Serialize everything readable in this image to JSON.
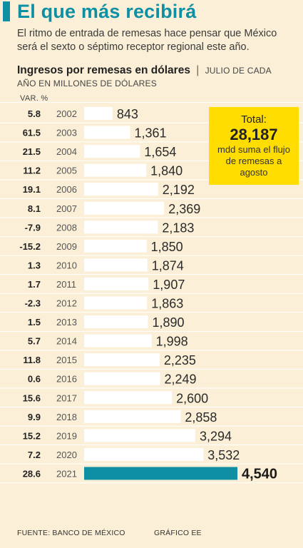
{
  "headline": "El que más recibirá",
  "dek": "El ritmo de entrada de remesas hace pensar que México será el sexto o séptimo receptor regional este año.",
  "chart_title": "Ingresos por remesas en dólares",
  "chart_subtitle_sep": "|",
  "chart_subtitle": "JULIO DE CADA",
  "units": "AÑO EN MILLONES DE DÓLARES",
  "var_header": "VAR. %",
  "total": {
    "label": "Total:",
    "value": "28,187",
    "desc": "mdd suma el flujo de remesas a agosto"
  },
  "footer": {
    "source": "FUENTE: BANCO DE MÉXICO",
    "credit": "GRÁFICO EE"
  },
  "colors": {
    "accent": "#0e8fa3",
    "bar": "#ffffff",
    "highlight_bar": "#0e8fa3",
    "background": "#fbf0d7",
    "total_box": "#ffdd00"
  },
  "chart_data": {
    "type": "bar",
    "orientation": "horizontal",
    "categories": [
      "2002",
      "2003",
      "2004",
      "2005",
      "2006",
      "2007",
      "2008",
      "2009",
      "2010",
      "2011",
      "2012",
      "2013",
      "2014",
      "2015",
      "2016",
      "2017",
      "2018",
      "2019",
      "2020",
      "2021"
    ],
    "values": [
      843,
      1361,
      1654,
      1840,
      2192,
      2369,
      2183,
      1850,
      1874,
      1907,
      1863,
      1890,
      1998,
      2235,
      2249,
      2600,
      2858,
      3294,
      3532,
      4540
    ],
    "value_labels": [
      "843",
      "1,361",
      "1,654",
      "1,840",
      "2,192",
      "2,369",
      "2,183",
      "1,850",
      "1,874",
      "1,907",
      "1,863",
      "1,890",
      "1,998",
      "2,235",
      "2,249",
      "2,600",
      "2,858",
      "3,294",
      "3,532",
      "4,540"
    ],
    "var_pct_labels": [
      "5.8",
      "61.5",
      "21.5",
      "11.2",
      "19.1",
      "8.1",
      "-7.9",
      "-15.2",
      "1.3",
      "1.7",
      "-2.3",
      "1.5",
      "5.7",
      "11.8",
      "0.6",
      "15.6",
      "9.9",
      "15.2",
      "7.2",
      "28.6"
    ],
    "highlight_category": "2021",
    "title": "Ingresos por remesas en dólares",
    "subtitle": "JULIO DE CADA AÑO EN MILLONES DE DÓLARES",
    "grid": false,
    "legend": "none"
  }
}
